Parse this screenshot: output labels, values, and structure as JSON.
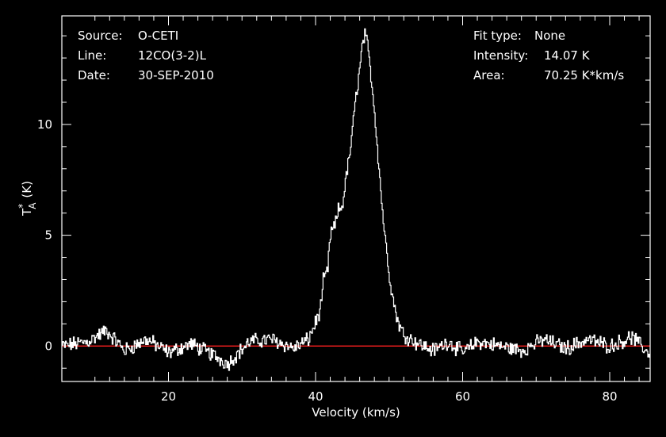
{
  "info": {
    "source_label": "Source:",
    "source_value": "O-CETI",
    "line_label": "Line:",
    "line_value": "12CO(3-2)L",
    "date_label": "Date:",
    "date_value": "30-SEP-2010",
    "fit_label": "Fit type:",
    "fit_value": "None",
    "intensity_label": "Intensity:",
    "intensity_value": "14.07 K",
    "area_label": "Area:",
    "area_value": "70.25 K*km/s"
  },
  "colors": {
    "background": "#000000",
    "spectrum": "#ffffff",
    "baseline": "#ff2020",
    "axes": "#ffffff"
  },
  "chart_data": {
    "type": "line",
    "xlabel": "Velocity (km/s)",
    "ylabel_main": "T",
    "ylabel_sup": "*",
    "ylabel_sub": "A",
    "ylabel_unit": "(K)",
    "xlim": [
      5.5,
      85.5
    ],
    "ylim": [
      -1.6,
      14.9
    ],
    "x_ticks": [
      20,
      40,
      60,
      80
    ],
    "y_ticks": [
      0,
      5,
      10
    ],
    "baseline_y": 0,
    "series": [
      {
        "x": [
          5.5,
          9.0,
          11.5,
          14.0,
          17.0,
          20.0,
          23.0,
          26.0,
          28.0,
          31.0,
          34.0,
          37.0,
          39.0,
          40.0,
          40.6,
          41.0,
          41.6,
          42.0,
          42.6,
          43.0,
          43.6,
          44.0,
          44.5,
          45.0,
          45.5,
          46.0,
          46.3,
          46.6,
          47.0,
          47.5,
          48.0,
          48.5,
          49.0,
          49.5,
          50.0,
          50.5,
          51.0,
          51.5,
          52.0,
          53.0,
          54.0,
          56.0,
          58.0,
          60.0,
          62.0,
          65.0,
          68.0,
          71.0,
          74.0,
          77.0,
          80.0,
          83.0,
          85.5
        ],
        "y": [
          0.0,
          0.2,
          0.7,
          -0.2,
          0.3,
          -0.3,
          0.1,
          -0.4,
          -0.8,
          0.2,
          0.3,
          -0.1,
          0.3,
          1.1,
          1.6,
          2.9,
          3.4,
          5.1,
          5.4,
          6.1,
          6.3,
          7.4,
          8.4,
          9.8,
          11.4,
          12.6,
          13.5,
          14.07,
          13.6,
          12.2,
          10.5,
          8.4,
          6.3,
          4.6,
          3.2,
          2.1,
          1.3,
          0.8,
          0.5,
          0.3,
          0.1,
          -0.2,
          0.2,
          -0.3,
          0.2,
          0.0,
          -0.2,
          0.3,
          -0.1,
          0.3,
          0.0,
          0.4,
          -0.4
        ]
      }
    ]
  }
}
